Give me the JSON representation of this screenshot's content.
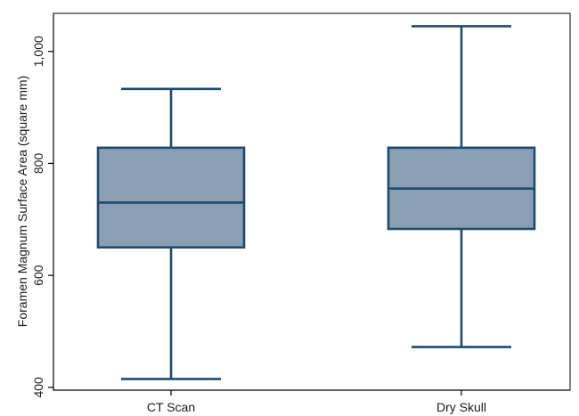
{
  "chart_data": {
    "type": "boxplot",
    "title": "",
    "xlabel": "",
    "ylabel": "Foramen Magnum Surface Area (square mm)",
    "ylim": [
      395,
      1068
    ],
    "yticks": [
      400,
      600,
      800,
      1000
    ],
    "ytick_labels": [
      "400",
      "600",
      "800",
      "1,000"
    ],
    "grid": false,
    "categories": [
      "CT Scan",
      "Dry Skull"
    ],
    "boxes": [
      {
        "category": "CT Scan",
        "whisker_low": 415,
        "q1": 650,
        "median": 730,
        "q3": 828,
        "whisker_high": 933
      },
      {
        "category": "Dry Skull",
        "whisker_low": 472,
        "q1": 683,
        "median": 755,
        "q3": 828,
        "whisker_high": 1045
      }
    ],
    "colors": {
      "box_fill": "#8a9fb3",
      "box_stroke": "#1f4b6e",
      "axis": "#000000"
    }
  }
}
